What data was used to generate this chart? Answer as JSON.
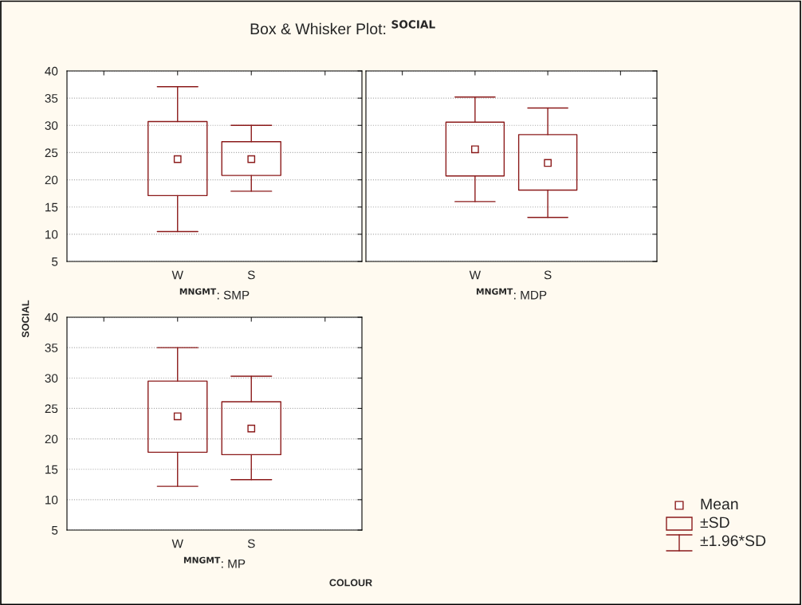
{
  "chart_data": [
    {
      "type": "box",
      "title": "Box & Whisker Plot: $^{SOCIAL}$",
      "ylabel": "SOCIAL",
      "xlabel": "$^{MNGMT}$: SMP",
      "categories": [
        "W",
        "S"
      ],
      "ylim": [
        5,
        40
      ],
      "yticks": [
        5,
        10,
        15,
        20,
        25,
        30,
        35,
        40
      ],
      "grid": "y",
      "marker": "square",
      "tick_labels": "xy",
      "series": [
        {
          "color": "#8b1a1a",
          "boxes": [
            {
              "low": 10.5,
              "q1": 17.1,
              "mean": 23.8,
              "q3": 30.7,
              "high": 37.1
            },
            {
              "low": 17.9,
              "q1": 20.8,
              "mean": 23.8,
              "q3": 27.0,
              "high": 30.0
            }
          ]
        }
      ]
    },
    {
      "type": "box",
      "xlabel": "$^{MNGMT}$: MDP",
      "categories": [
        "W",
        "S"
      ],
      "ylim": [
        5,
        40
      ],
      "yticks": [
        5,
        10,
        15,
        20,
        25,
        30,
        35,
        40
      ],
      "grid": "y",
      "marker": "square",
      "tick_labels": "x",
      "series": [
        {
          "color": "#8b1a1a",
          "boxes": [
            {
              "low": 16.0,
              "q1": 20.7,
              "mean": 25.6,
              "q3": 30.6,
              "high": 35.2
            },
            {
              "low": 13.1,
              "q1": 18.1,
              "mean": 23.1,
              "q3": 28.3,
              "high": 33.2
            }
          ]
        }
      ]
    },
    {
      "type": "box",
      "xlabel": "$^{MNGMT}$: MP",
      "categories": [
        "W",
        "S"
      ],
      "ylim": [
        5,
        40
      ],
      "yticks": [
        5,
        10,
        15,
        20,
        25,
        30,
        35,
        40
      ],
      "grid": "y",
      "marker": "square",
      "annotations": [
        "COLOUR",
        "Mean",
        "±SD",
        "±1.96*SD"
      ],
      "series": [
        {
          "color": "#8b1a1a",
          "boxes": [
            {
              "low": 12.2,
              "q1": 17.8,
              "mean": 23.7,
              "q3": 29.5,
              "high": 35.0
            },
            {
              "low": 13.3,
              "q1": 17.4,
              "mean": 21.7,
              "q3": 26.1,
              "high": 30.3
            }
          ]
        }
      ]
    }
  ]
}
